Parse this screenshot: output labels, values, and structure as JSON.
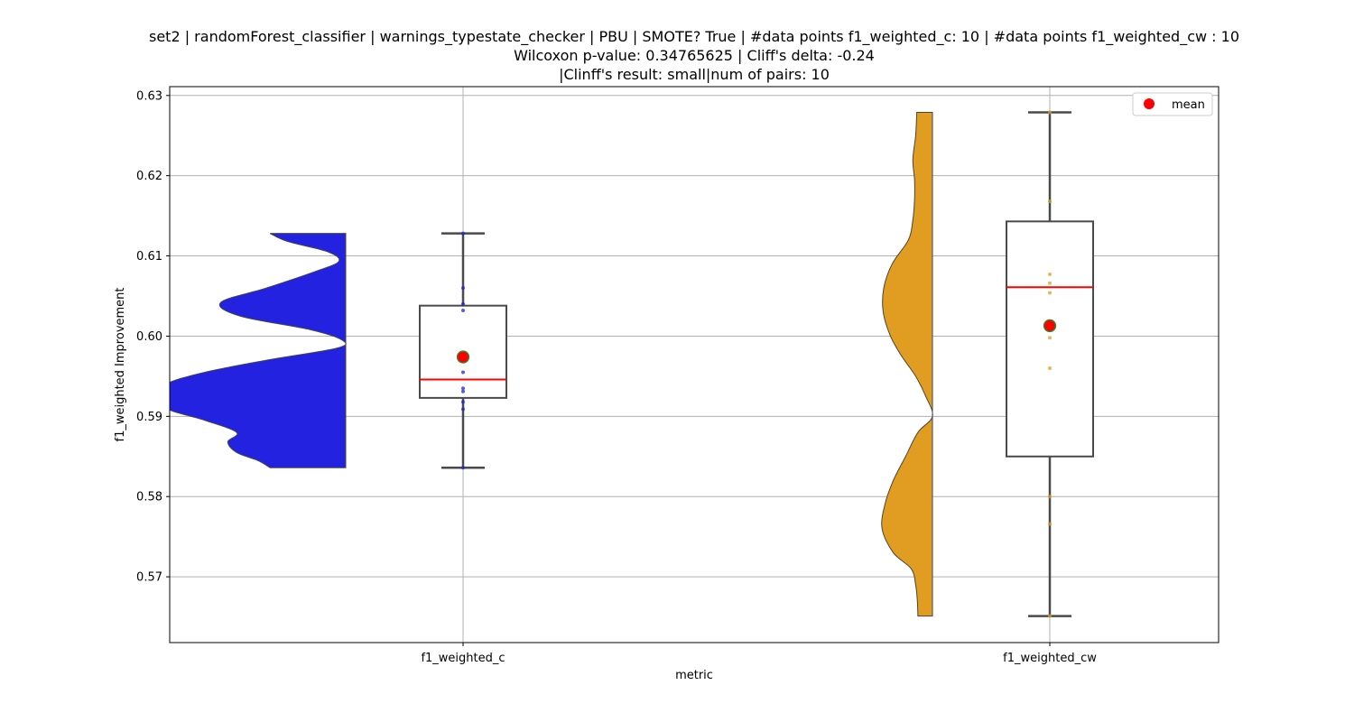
{
  "title": {
    "line1": "set2 | randomForest_classifier | warnings_typestate_checker | PBU | SMOTE? True | #data points f1_weighted_c: 10 | #data points f1_weighted_cw : 10",
    "line2": "Wilcoxon p-value: 0.34765625 | Cliff's delta: -0.24",
    "line3": "|Clinff's result: small|num of pairs: 10"
  },
  "chart_data": {
    "type": "violin+box",
    "xlabel": "metric",
    "ylabel": "f1_weighted Improvement",
    "categories": [
      "f1_weighted_c",
      "f1_weighted_cw"
    ],
    "ylim": [
      0.5618,
      0.6311
    ],
    "yticks": [
      0.57,
      0.58,
      0.59,
      0.6,
      0.61,
      0.62,
      0.63
    ],
    "ytick_labels": [
      "0.57",
      "0.58",
      "0.59",
      "0.60",
      "0.61",
      "0.62",
      "0.63"
    ],
    "grid": true,
    "legend": {
      "position": "top-right",
      "entries": [
        {
          "label": "mean",
          "color": "#ff0000"
        }
      ]
    },
    "colors": {
      "f1_weighted_c": "#2222e0",
      "f1_weighted_cw": "#e09d22",
      "median": "#ff0000",
      "mean_fill": "#ff0000",
      "mean_edge": "#2e8b2e",
      "box_edge": "#4a4a4a"
    },
    "series": [
      {
        "category": "f1_weighted_c",
        "box": {
          "whisker_low": 0.5836,
          "q1": 0.5923,
          "median": 0.5946,
          "q3": 0.6038,
          "whisker_high": 0.6128
        },
        "mean": 0.5974,
        "points": [
          0.6128,
          0.606,
          0.604,
          0.6032,
          0.5955,
          0.5935,
          0.5931,
          0.5918,
          0.5909,
          0.5836
        ],
        "violin_profile": [
          [
            0.5836,
            0.43
          ],
          [
            0.5845,
            0.5
          ],
          [
            0.5855,
            0.62
          ],
          [
            0.5868,
            0.67
          ],
          [
            0.588,
            0.62
          ],
          [
            0.5895,
            0.8
          ],
          [
            0.591,
            1.02
          ],
          [
            0.5925,
            1.0
          ],
          [
            0.594,
            1.02
          ],
          [
            0.5955,
            0.8
          ],
          [
            0.597,
            0.45
          ],
          [
            0.5985,
            0.05
          ],
          [
            0.5995,
            0.02
          ],
          [
            0.6008,
            0.2
          ],
          [
            0.6025,
            0.6
          ],
          [
            0.6042,
            0.71
          ],
          [
            0.606,
            0.45
          ],
          [
            0.608,
            0.18
          ],
          [
            0.6093,
            0.04
          ],
          [
            0.6105,
            0.1
          ],
          [
            0.6118,
            0.33
          ],
          [
            0.6128,
            0.43
          ]
        ]
      },
      {
        "category": "f1_weighted_cw",
        "box": {
          "whisker_low": 0.5651,
          "q1": 0.585,
          "median": 0.6061,
          "q3": 0.6143,
          "whisker_high": 0.6279
        },
        "mean": 0.6013,
        "points": [
          0.6279,
          0.6168,
          0.6077,
          0.6066,
          0.6054,
          0.5998,
          0.596,
          0.58,
          0.5766,
          0.5651
        ],
        "violin_profile": [
          [
            0.5651,
            0.26
          ],
          [
            0.567,
            0.27
          ],
          [
            0.569,
            0.3
          ],
          [
            0.571,
            0.38
          ],
          [
            0.573,
            0.7
          ],
          [
            0.576,
            0.9
          ],
          [
            0.579,
            0.85
          ],
          [
            0.582,
            0.7
          ],
          [
            0.585,
            0.48
          ],
          [
            0.588,
            0.26
          ],
          [
            0.59,
            0.0
          ],
          [
            0.5925,
            0.12
          ],
          [
            0.595,
            0.3
          ],
          [
            0.5975,
            0.55
          ],
          [
            0.6,
            0.75
          ],
          [
            0.603,
            0.88
          ],
          [
            0.606,
            0.87
          ],
          [
            0.609,
            0.72
          ],
          [
            0.612,
            0.43
          ],
          [
            0.6145,
            0.35
          ],
          [
            0.617,
            0.32
          ],
          [
            0.6195,
            0.32
          ],
          [
            0.622,
            0.35
          ],
          [
            0.625,
            0.3
          ],
          [
            0.6279,
            0.28
          ]
        ]
      }
    ]
  }
}
